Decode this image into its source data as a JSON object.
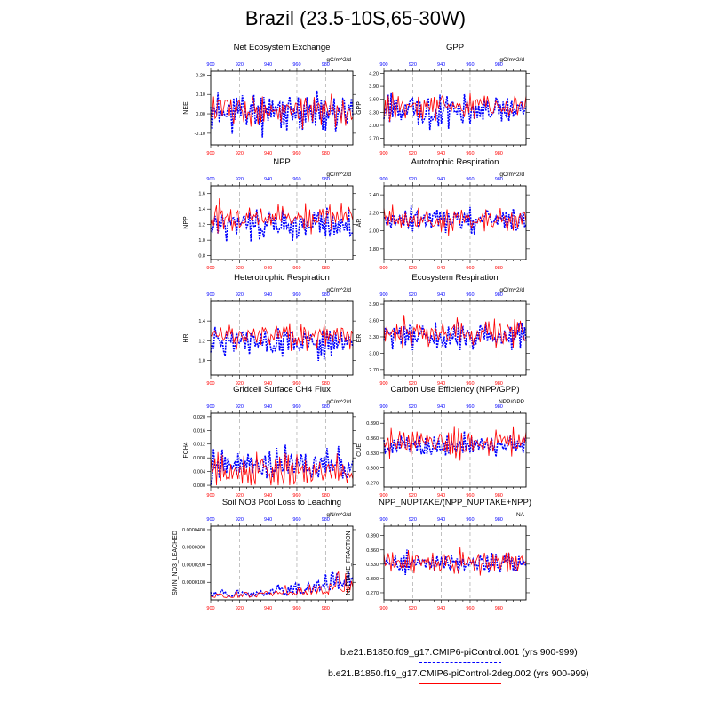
{
  "page": {
    "title": "Brazil (23.5-10S,65-30W)"
  },
  "colors": {
    "series1": "#0000ff",
    "series2": "#ff0000",
    "axis": "#000000",
    "grid": "#999999"
  },
  "legend": [
    {
      "label": "b.e21.B1850.f09_g17.CMIP6-piControl.001 (yrs 900-999)",
      "color": "#0000ff",
      "style": "dashed"
    },
    {
      "label": "b.e21.B1850.f19_g17.CMIP6-piControl-2deg.002 (yrs 900-999)",
      "color": "#ff0000",
      "style": "solid"
    }
  ],
  "chart_data": [
    {
      "type": "line",
      "title": "Net Ecosystem Exchange",
      "units": "gC/m^2/d",
      "ylabel": "NEE",
      "xlim": [
        900,
        999
      ],
      "ylim": [
        -0.16,
        0.22
      ],
      "yticks": [
        -0.1,
        0.0,
        0.1,
        0.2
      ],
      "ytick_labels": [
        "-0.10",
        "0.00",
        "0.10",
        "0.20"
      ],
      "xticks": [
        900,
        920,
        940,
        960,
        980
      ],
      "series": [
        {
          "color": "#0000ff",
          "style": "dashed",
          "mean": 0.01,
          "amp": 0.085,
          "seed": 11
        },
        {
          "color": "#ff0000",
          "style": "solid",
          "mean": 0.02,
          "amp": 0.07,
          "seed": 12
        }
      ]
    },
    {
      "type": "line",
      "title": "GPP",
      "units": "gC/m^2/d",
      "ylabel": "GPP",
      "xlim": [
        900,
        999
      ],
      "ylim": [
        2.55,
        4.25
      ],
      "yticks": [
        2.7,
        3.0,
        3.3,
        3.6,
        3.9,
        4.2
      ],
      "ytick_labels": [
        "2.70",
        "3.00",
        "3.30",
        "3.60",
        "3.90",
        "4.20"
      ],
      "xticks": [
        900,
        920,
        940,
        960,
        980
      ],
      "series": [
        {
          "color": "#0000ff",
          "style": "dashed",
          "mean": 3.35,
          "amp": 0.3,
          "seed": 21
        },
        {
          "color": "#ff0000",
          "style": "solid",
          "mean": 3.45,
          "amp": 0.25,
          "seed": 22
        }
      ]
    },
    {
      "type": "line",
      "title": "NPP",
      "units": "gC/m^2/d",
      "ylabel": "NPP",
      "xlim": [
        900,
        999
      ],
      "ylim": [
        0.75,
        1.7
      ],
      "yticks": [
        0.8,
        1.0,
        1.2,
        1.4,
        1.6
      ],
      "ytick_labels": [
        "0.8",
        "1.0",
        "1.2",
        "1.4",
        "1.6"
      ],
      "xticks": [
        900,
        920,
        940,
        960,
        980
      ],
      "series": [
        {
          "color": "#0000ff",
          "style": "dashed",
          "mean": 1.2,
          "amp": 0.17,
          "seed": 31
        },
        {
          "color": "#ff0000",
          "style": "solid",
          "mean": 1.3,
          "amp": 0.14,
          "seed": 32
        }
      ]
    },
    {
      "type": "line",
      "title": "Autotrophic Respiration",
      "units": "gC/m^2/d",
      "ylabel": "AR",
      "xlim": [
        900,
        999
      ],
      "ylim": [
        1.68,
        2.5
      ],
      "yticks": [
        1.8,
        2.0,
        2.2,
        2.4
      ],
      "ytick_labels": [
        "1.80",
        "2.00",
        "2.20",
        "2.40"
      ],
      "xticks": [
        900,
        920,
        940,
        960,
        980
      ],
      "series": [
        {
          "color": "#0000ff",
          "style": "dashed",
          "mean": 2.12,
          "amp": 0.13,
          "seed": 41
        },
        {
          "color": "#ff0000",
          "style": "solid",
          "mean": 2.12,
          "amp": 0.12,
          "seed": 42
        }
      ]
    },
    {
      "type": "line",
      "title": "Heterotrophic Respiration",
      "units": "gC/m^2/d",
      "ylabel": "HR",
      "xlim": [
        900,
        999
      ],
      "ylim": [
        0.85,
        1.6
      ],
      "yticks": [
        1.0,
        1.2,
        1.4
      ],
      "ytick_labels": [
        "1.0",
        "1.2",
        "1.4"
      ],
      "xticks": [
        900,
        920,
        940,
        960,
        980
      ],
      "series": [
        {
          "color": "#0000ff",
          "style": "dashed",
          "mean": 1.18,
          "amp": 0.13,
          "seed": 51
        },
        {
          "color": "#ff0000",
          "style": "solid",
          "mean": 1.25,
          "amp": 0.11,
          "seed": 52
        }
      ]
    },
    {
      "type": "line",
      "title": "Ecosystem Respiration",
      "units": "gC/m^2/d",
      "ylabel": "ER",
      "xlim": [
        900,
        999
      ],
      "ylim": [
        2.6,
        3.95
      ],
      "yticks": [
        2.7,
        3.0,
        3.3,
        3.6,
        3.9
      ],
      "ytick_labels": [
        "2.70",
        "3.00",
        "3.30",
        "3.60",
        "3.90"
      ],
      "xticks": [
        900,
        920,
        940,
        960,
        980
      ],
      "series": [
        {
          "color": "#0000ff",
          "style": "dashed",
          "mean": 3.3,
          "amp": 0.22,
          "seed": 61
        },
        {
          "color": "#ff0000",
          "style": "solid",
          "mean": 3.38,
          "amp": 0.2,
          "seed": 62
        }
      ]
    },
    {
      "type": "line",
      "title": "Gridcell Surface CH4 Flux",
      "units": "gC/m^2/d",
      "ylabel": "FCH4",
      "xlim": [
        900,
        999
      ],
      "ylim": [
        -0.0005,
        0.021
      ],
      "yticks": [
        0.0,
        0.004,
        0.008,
        0.012,
        0.016,
        0.02
      ],
      "ytick_labels": [
        "0.000",
        "0.004",
        "0.008",
        "0.012",
        "0.016",
        "0.020"
      ],
      "xticks": [
        900,
        920,
        940,
        960,
        980
      ],
      "series": [
        {
          "color": "#0000ff",
          "style": "dashed",
          "mean": 0.006,
          "amp": 0.0045,
          "seed": 71,
          "floor": 0.0
        },
        {
          "color": "#ff0000",
          "style": "solid",
          "mean": 0.004,
          "amp": 0.004,
          "seed": 72,
          "floor": 0.0
        }
      ]
    },
    {
      "type": "line",
      "title": "Carbon Use Efficiency (NPP/GPP)",
      "units": "NPP/GPP",
      "ylabel": "CUE",
      "xlim": [
        900,
        999
      ],
      "ylim": [
        0.262,
        0.41
      ],
      "yticks": [
        0.27,
        0.3,
        0.33,
        0.36,
        0.39
      ],
      "ytick_labels": [
        "0.270",
        "0.300",
        "0.330",
        "0.360",
        "0.390"
      ],
      "xticks": [
        900,
        920,
        940,
        960,
        980
      ],
      "series": [
        {
          "color": "#0000ff",
          "style": "dashed",
          "mean": 0.345,
          "amp": 0.02,
          "seed": 81
        },
        {
          "color": "#ff0000",
          "style": "solid",
          "mean": 0.35,
          "amp": 0.022,
          "seed": 82
        }
      ]
    },
    {
      "type": "line",
      "title": "Soil NO3 Pool Loss to Leaching",
      "units": "gN/m^2/d",
      "ylabel": "SMIN_NO3_LEACHED",
      "xlim": [
        900,
        999
      ],
      "ylim": [
        0.0,
        4.2e-05
      ],
      "yticks": [
        1e-05,
        2e-05,
        3e-05,
        4e-05
      ],
      "ytick_labels": [
        "0.0000100",
        "0.0000200",
        "0.0000300",
        "0.0000400"
      ],
      "xticks": [
        900,
        920,
        940,
        960,
        980
      ],
      "series": [
        {
          "color": "#0000ff",
          "style": "dashed",
          "mean": 1.2e-05,
          "amp": 8e-06,
          "seed": 91,
          "floor": 3e-07,
          "ramp": true
        },
        {
          "color": "#ff0000",
          "style": "solid",
          "mean": 8e-06,
          "amp": 6e-06,
          "seed": 92,
          "floor": 3e-07,
          "ramp": true
        }
      ]
    },
    {
      "type": "line",
      "title": "NPP_NUPTAKE/(NPP_NUPTAKE+NPP)",
      "units": "NA",
      "ylabel": "NUPTAKE_FRACTION",
      "xlim": [
        900,
        999
      ],
      "ylim": [
        0.255,
        0.41
      ],
      "yticks": [
        0.27,
        0.3,
        0.33,
        0.36,
        0.39
      ],
      "ytick_labels": [
        "0.270",
        "0.300",
        "0.330",
        "0.360",
        "0.390"
      ],
      "xticks": [
        900,
        920,
        940,
        960,
        980
      ],
      "series": [
        {
          "color": "#0000ff",
          "style": "dashed",
          "mean": 0.333,
          "amp": 0.018,
          "seed": 101
        },
        {
          "color": "#ff0000",
          "style": "solid",
          "mean": 0.333,
          "amp": 0.02,
          "seed": 102
        }
      ]
    }
  ]
}
